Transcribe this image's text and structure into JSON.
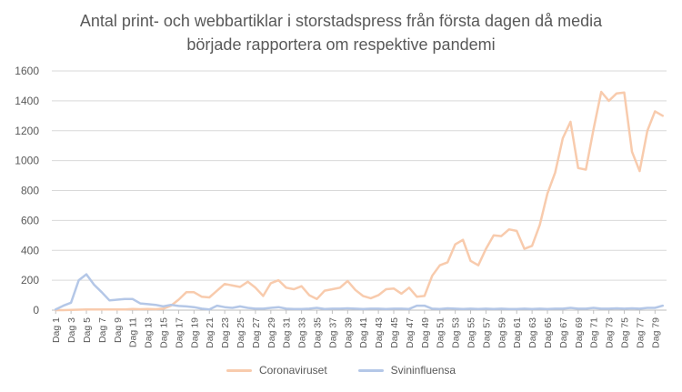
{
  "chart_data": {
    "type": "line",
    "title_lines": [
      "Antal print- och webbartiklar i storstadspress från första dagen då media",
      "började rapportera om respektive pandemi"
    ],
    "xlabel": "",
    "ylabel": "",
    "ylim": [
      0,
      1600
    ],
    "yticks": [
      0,
      200,
      400,
      600,
      800,
      1000,
      1200,
      1400,
      1600
    ],
    "grid": true,
    "legend_position": "bottom",
    "categories": [
      "Dag 1",
      "Dag 2",
      "Dag 3",
      "Dag 4",
      "Dag 5",
      "Dag 6",
      "Dag 7",
      "Dag 8",
      "Dag 9",
      "Dag 10",
      "Dag 11",
      "Dag 12",
      "Dag 13",
      "Dag 14",
      "Dag 15",
      "Dag 16",
      "Dag 17",
      "Dag 18",
      "Dag 19",
      "Dag 20",
      "Dag 21",
      "Dag 22",
      "Dag 23",
      "Dag 24",
      "Dag 25",
      "Dag 26",
      "Dag 27",
      "Dag 28",
      "Dag 29",
      "Dag 30",
      "Dag 31",
      "Dag 32",
      "Dag 33",
      "Dag 34",
      "Dag 35",
      "Dag 36",
      "Dag 37",
      "Dag 38",
      "Dag 39",
      "Dag 40",
      "Dag 41",
      "Dag 42",
      "Dag 43",
      "Dag 44",
      "Dag 45",
      "Dag 46",
      "Dag 47",
      "Dag 48",
      "Dag 49",
      "Dag 50",
      "Dag 51",
      "Dag 52",
      "Dag 53",
      "Dag 54",
      "Dag 55",
      "Dag 56",
      "Dag 57",
      "Dag 58",
      "Dag 59",
      "Dag 60",
      "Dag 61",
      "Dag 62",
      "Dag 63",
      "Dag 64",
      "Dag 65",
      "Dag 66",
      "Dag 67",
      "Dag 68",
      "Dag 69",
      "Dag 70",
      "Dag 71",
      "Dag 72",
      "Dag 73",
      "Dag 74",
      "Dag 75",
      "Dag 76",
      "Dag 77",
      "Dag 78",
      "Dag 79",
      "Dag 80"
    ],
    "tick_labels": [
      "Dag 1",
      "Dag 3",
      "Dag 5",
      "Dag 7",
      "Dag 9",
      "Dag 11",
      "Dag 13",
      "Dag 15",
      "Dag 17",
      "Dag 19",
      "Dag 21",
      "Dag 23",
      "Dag 25",
      "Dag 27",
      "Dag 29",
      "Dag 31",
      "Dag 33",
      "Dag 35",
      "Dag 37",
      "Dag 39",
      "Dag 41",
      "Dag 43",
      "Dag 45",
      "Dag 47",
      "Dag 49",
      "Dag 51",
      "Dag 53",
      "Dag 55",
      "Dag 57",
      "Dag 59",
      "Dag 61",
      "Dag 63",
      "Dag 65",
      "Dag 67",
      "Dag 69",
      "Dag 71",
      "Dag 73",
      "Dag 75",
      "Dag 77",
      "Dag 79"
    ],
    "series": [
      {
        "name": "Coronaviruset",
        "color": "#f8cbad",
        "values": [
          0,
          0,
          2,
          3,
          5,
          5,
          5,
          4,
          5,
          5,
          8,
          6,
          8,
          6,
          10,
          30,
          70,
          120,
          120,
          90,
          85,
          130,
          175,
          165,
          155,
          190,
          150,
          95,
          180,
          200,
          150,
          140,
          160,
          100,
          75,
          130,
          140,
          150,
          195,
          135,
          95,
          80,
          100,
          140,
          145,
          110,
          150,
          90,
          95,
          230,
          300,
          320,
          440,
          470,
          330,
          300,
          410,
          500,
          495,
          540,
          530,
          410,
          430,
          570,
          780,
          920,
          1150,
          1260,
          950,
          940,
          1210,
          1460,
          1400,
          1450,
          1455,
          1060,
          930,
          1200,
          1330,
          1300
        ]
      },
      {
        "name": "Svininfluensa",
        "color": "#b4c7e7",
        "values": [
          5,
          30,
          50,
          200,
          240,
          170,
          120,
          65,
          70,
          75,
          75,
          45,
          40,
          35,
          25,
          35,
          28,
          25,
          20,
          10,
          5,
          30,
          20,
          15,
          25,
          15,
          10,
          10,
          15,
          20,
          10,
          8,
          8,
          10,
          15,
          8,
          10,
          10,
          12,
          10,
          8,
          10,
          10,
          8,
          10,
          10,
          8,
          30,
          30,
          10,
          8,
          12,
          10,
          8,
          10,
          8,
          10,
          8,
          10,
          8,
          8,
          10,
          8,
          10,
          8,
          10,
          10,
          15,
          10,
          10,
          15,
          10,
          10,
          12,
          10,
          12,
          10,
          15,
          15,
          30
        ]
      }
    ]
  }
}
